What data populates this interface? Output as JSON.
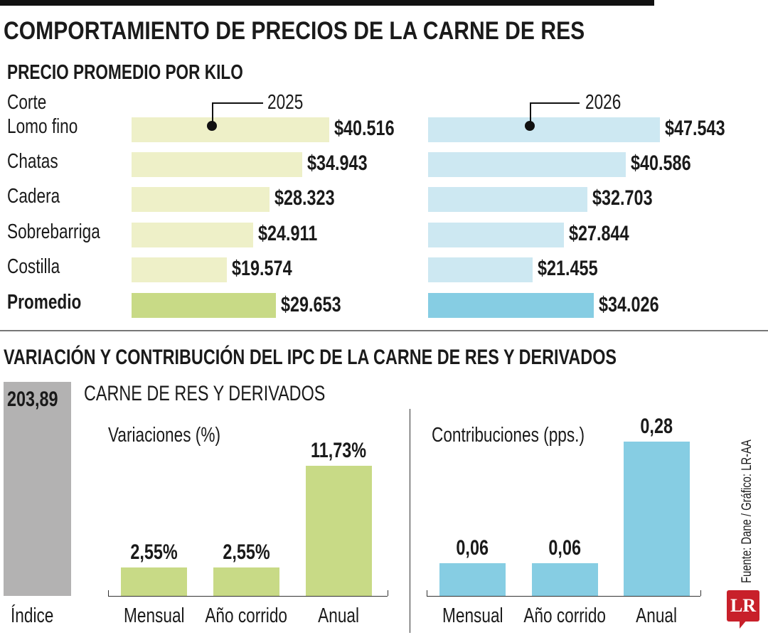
{
  "title": "COMPORTAMIENTO DE PRECIOS DE LA CARNE DE RES",
  "source": "Fuente: Dane / Gráfico: LR-AA",
  "logo": "LR",
  "colors": {
    "y2025": "#eef0c8",
    "y2025_avg": "#c8da86",
    "y2026": "#cde8f2",
    "y2026_avg": "#86cde3",
    "index": "#b3b2b2"
  },
  "chart_data": [
    {
      "type": "bar",
      "orientation": "horizontal",
      "title": "PRECIO PROMEDIO POR KILO",
      "category_header": "Corte",
      "categories": [
        "Lomo fino",
        "Chatas",
        "Cadera",
        "Sobrebarriga",
        "Costilla",
        "Promedio"
      ],
      "series": [
        {
          "name": "2025",
          "values": [
            40516,
            34943,
            28323,
            24911,
            19574,
            29653
          ],
          "labels": [
            "$40.516",
            "$34.943",
            "$28.323",
            "$24.911",
            "$19.574",
            "$29.653"
          ]
        },
        {
          "name": "2026",
          "values": [
            47543,
            40586,
            32703,
            27844,
            21455,
            34026
          ],
          "labels": [
            "$47.543",
            "$40.586",
            "$32.703",
            "$27.844",
            "$21.455",
            "$34.026"
          ]
        }
      ]
    },
    {
      "type": "bar",
      "title": "VARIACIÓN Y CONTRIBUCIÓN DEL IPC DE LA CARNE DE RES Y DERIVADOS",
      "subtitle": "CARNE DE RES Y DERIVADOS",
      "index": {
        "label": "Índice",
        "value": 203.89,
        "display": "203,89"
      },
      "panels": [
        {
          "title": "Variaciones (%)",
          "categories": [
            "Mensual",
            "Año corrido",
            "Anual"
          ],
          "values": [
            2.55,
            2.55,
            11.73
          ],
          "labels": [
            "2,55%",
            "2,55%",
            "11,73%"
          ]
        },
        {
          "title": "Contribuciones (pps.)",
          "categories": [
            "Mensual",
            "Año corrido",
            "Anual"
          ],
          "values": [
            0.06,
            0.06,
            0.28
          ],
          "labels": [
            "0,06",
            "0,06",
            "0,28"
          ]
        }
      ]
    }
  ]
}
